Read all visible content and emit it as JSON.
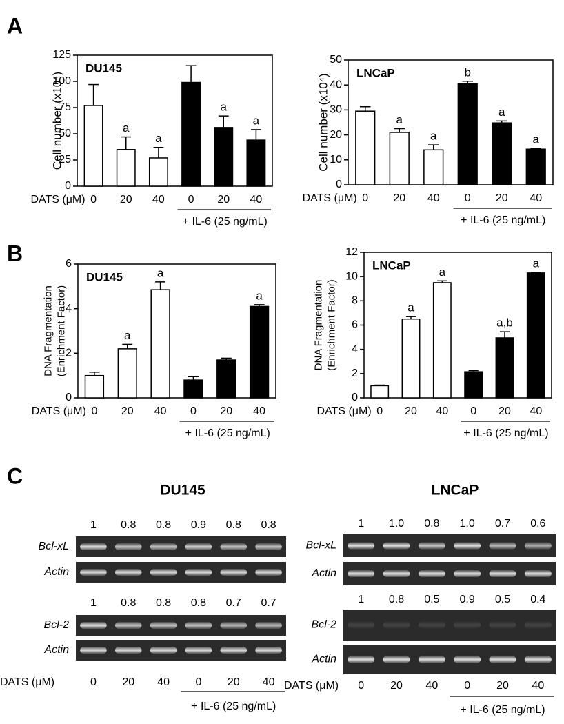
{
  "panel_labels": [
    "A",
    "B",
    "C"
  ],
  "chart_data": [
    {
      "type": "bar",
      "title": "DU145",
      "ylabel": [
        "Cell number (x10⁴)"
      ],
      "xlabel": "DATS (μM)",
      "categories": [
        "0",
        "20",
        "40",
        "0",
        "20",
        "40"
      ],
      "group_label": "+ IL-6 (25 ng/mL)",
      "values": [
        77,
        35,
        27,
        99,
        56,
        44
      ],
      "errors": [
        20,
        12,
        10,
        16,
        11,
        10
      ],
      "annotations": [
        null,
        "a",
        "a",
        null,
        "a",
        "a"
      ],
      "colors": [
        "#ffffff",
        "#ffffff",
        "#ffffff",
        "#000000",
        "#000000",
        "#000000"
      ],
      "ylim": [
        0,
        125
      ],
      "yticks": [
        0,
        25,
        50,
        75,
        100,
        125
      ]
    },
    {
      "type": "bar",
      "title": "LNCaP",
      "ylabel": [
        "Cell number (x10⁴)"
      ],
      "xlabel": "DATS (μM)",
      "categories": [
        "0",
        "20",
        "40",
        "0",
        "20",
        "40"
      ],
      "group_label": "+ IL-6 (25 ng/mL)",
      "values": [
        29.5,
        21,
        14,
        40.5,
        24.8,
        14.3
      ],
      "errors": [
        1.8,
        1.5,
        2,
        1,
        0.8,
        0.3
      ],
      "annotations": [
        null,
        "a",
        "a",
        "b",
        "a",
        "a"
      ],
      "colors": [
        "#ffffff",
        "#ffffff",
        "#ffffff",
        "#000000",
        "#000000",
        "#000000"
      ],
      "ylim": [
        0,
        50
      ],
      "yticks": [
        0,
        10,
        20,
        30,
        40,
        50
      ]
    },
    {
      "type": "bar",
      "title": "DU145",
      "ylabel": [
        "DNA Fragmentation",
        "(Enrichment Factor)"
      ],
      "xlabel": "DATS (μM)",
      "categories": [
        "0",
        "20",
        "40",
        "0",
        "20",
        "40"
      ],
      "group_label": "+ IL-6 (25 ng/mL)",
      "values": [
        1.0,
        2.2,
        4.85,
        0.8,
        1.7,
        4.1
      ],
      "errors": [
        0.15,
        0.2,
        0.35,
        0.15,
        0.08,
        0.08
      ],
      "annotations": [
        null,
        "a",
        "a",
        null,
        null,
        "a"
      ],
      "colors": [
        "#ffffff",
        "#ffffff",
        "#ffffff",
        "#000000",
        "#000000",
        "#000000"
      ],
      "ylim": [
        0,
        6
      ],
      "yticks": [
        0,
        2,
        4,
        6
      ]
    },
    {
      "type": "bar",
      "title": "LNCaP",
      "ylabel": [
        "DNA Fragmentation",
        "(Enrichment Factor)"
      ],
      "xlabel": "DATS (μM)",
      "categories": [
        "0",
        "20",
        "40",
        "0",
        "20",
        "40"
      ],
      "group_label": "+ IL-6 (25 ng/mL)",
      "values": [
        1.0,
        6.5,
        9.5,
        2.15,
        4.95,
        10.3
      ],
      "errors": [
        0.05,
        0.2,
        0.15,
        0.1,
        0.5,
        0.05
      ],
      "annotations": [
        null,
        "a",
        "a",
        null,
        "a,b",
        "a"
      ],
      "colors": [
        "#ffffff",
        "#ffffff",
        "#ffffff",
        "#000000",
        "#000000",
        "#000000"
      ],
      "ylim": [
        0,
        12
      ],
      "yticks": [
        0,
        2,
        4,
        6,
        8,
        10,
        12
      ]
    }
  ],
  "gels": [
    {
      "title": "DU145",
      "xlabel": "DATS (μM)",
      "doses": [
        "0",
        "20",
        "40",
        "0",
        "20",
        "40"
      ],
      "group_label": "+ IL-6 (25 ng/mL)",
      "blots": [
        {
          "label": "Bcl-xL",
          "numbers": [
            "1",
            "0.8",
            "0.8",
            "0.9",
            "0.8",
            "0.8"
          ]
        },
        {
          "label": "Actin"
        },
        {
          "label": "Bcl-2",
          "numbers": [
            "1",
            "0.8",
            "0.8",
            "0.8",
            "0.7",
            "0.7"
          ]
        },
        {
          "label": "Actin"
        }
      ]
    },
    {
      "title": "LNCaP",
      "xlabel": "DATS (μM)",
      "doses": [
        "0",
        "20",
        "40",
        "0",
        "20",
        "40"
      ],
      "group_label": "+ IL-6 (25 ng/mL)",
      "blots": [
        {
          "label": "Bcl-xL",
          "numbers": [
            "1",
            "1.0",
            "0.8",
            "1.0",
            "0.7",
            "0.6"
          ]
        },
        {
          "label": "Actin"
        },
        {
          "label": "Bcl-2",
          "numbers": [
            "1",
            "0.8",
            "0.5",
            "0.9",
            "0.5",
            "0.4"
          ]
        },
        {
          "label": "Actin"
        }
      ]
    }
  ]
}
